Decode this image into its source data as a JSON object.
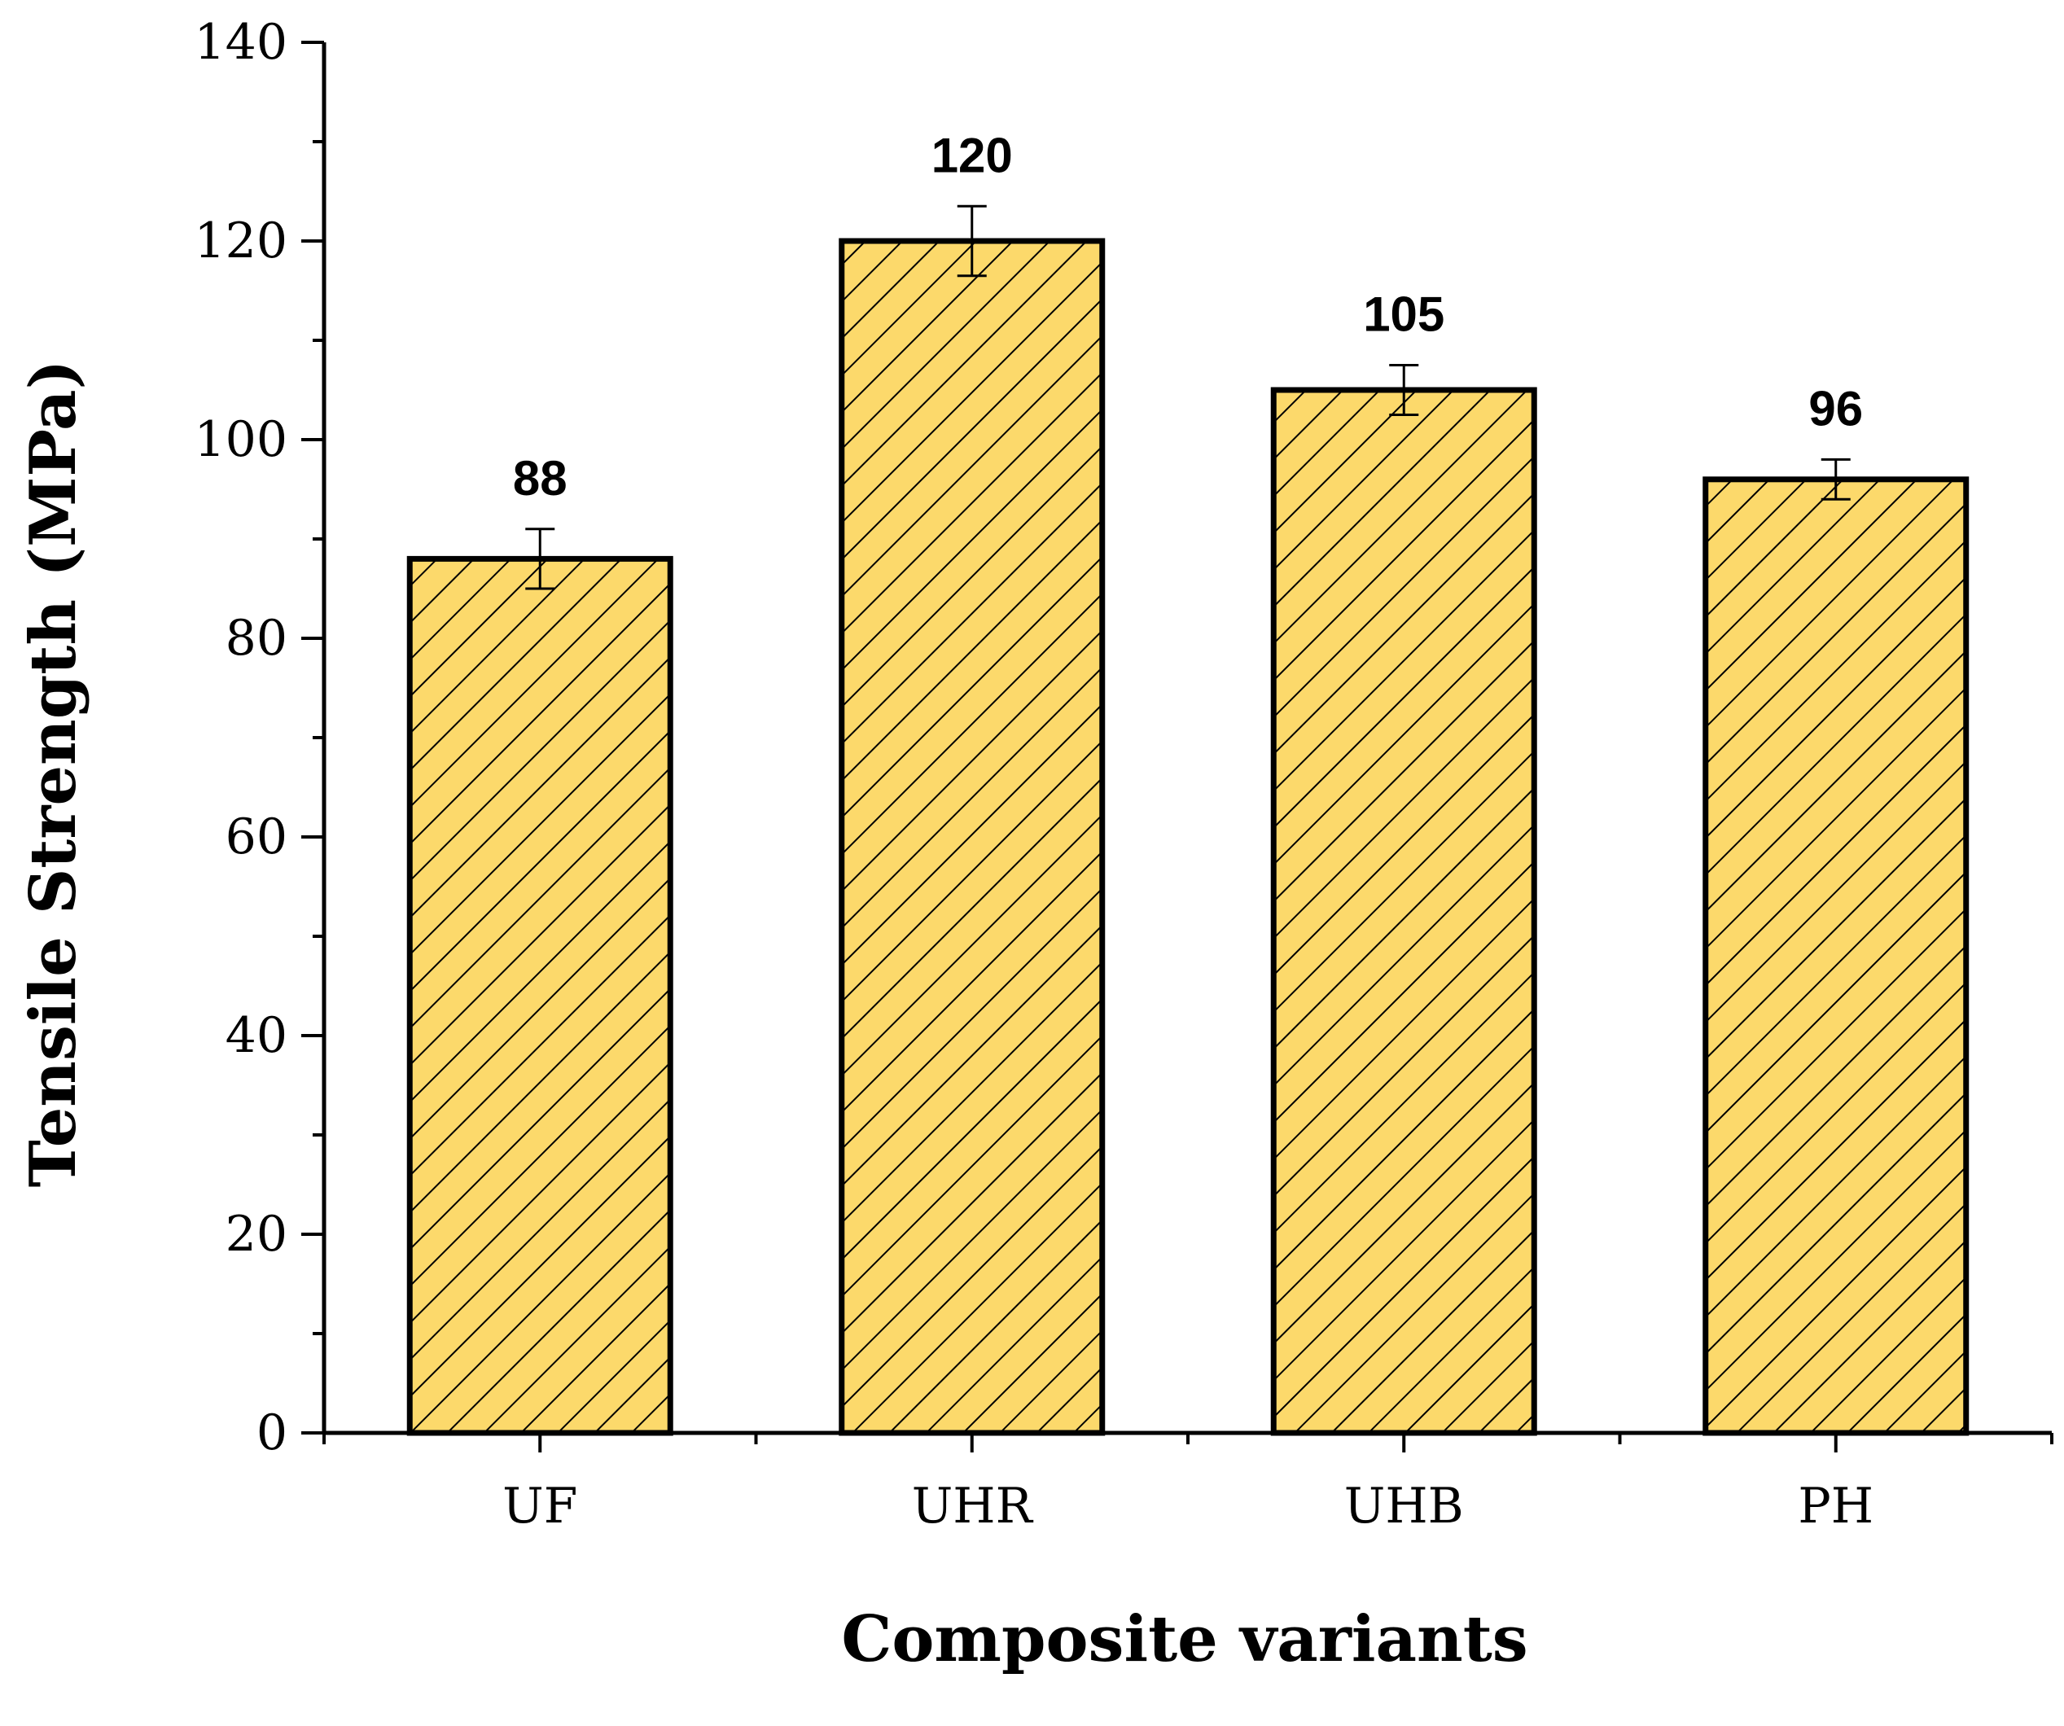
{
  "chart_data": {
    "type": "bar",
    "categories": [
      "UF",
      "UHR",
      "UHB",
      "PH"
    ],
    "values": [
      88,
      120,
      105,
      96
    ],
    "error": [
      3,
      3.5,
      2.5,
      2
    ],
    "data_labels": [
      "88",
      "120",
      "105",
      "96"
    ],
    "title": "",
    "xlabel": "Composite variants",
    "ylabel": "Tensile Strength (MPa)",
    "ylim": [
      0,
      140
    ],
    "yticks": [
      0,
      20,
      40,
      60,
      80,
      100,
      120,
      140
    ],
    "ytick_labels": [
      "0",
      "20",
      "40",
      "60",
      "80",
      "100",
      "120",
      "140"
    ],
    "grid": false,
    "bar_color": "#fcd96b",
    "bar_edge_color": "#000000",
    "hatch": "diagonal"
  }
}
